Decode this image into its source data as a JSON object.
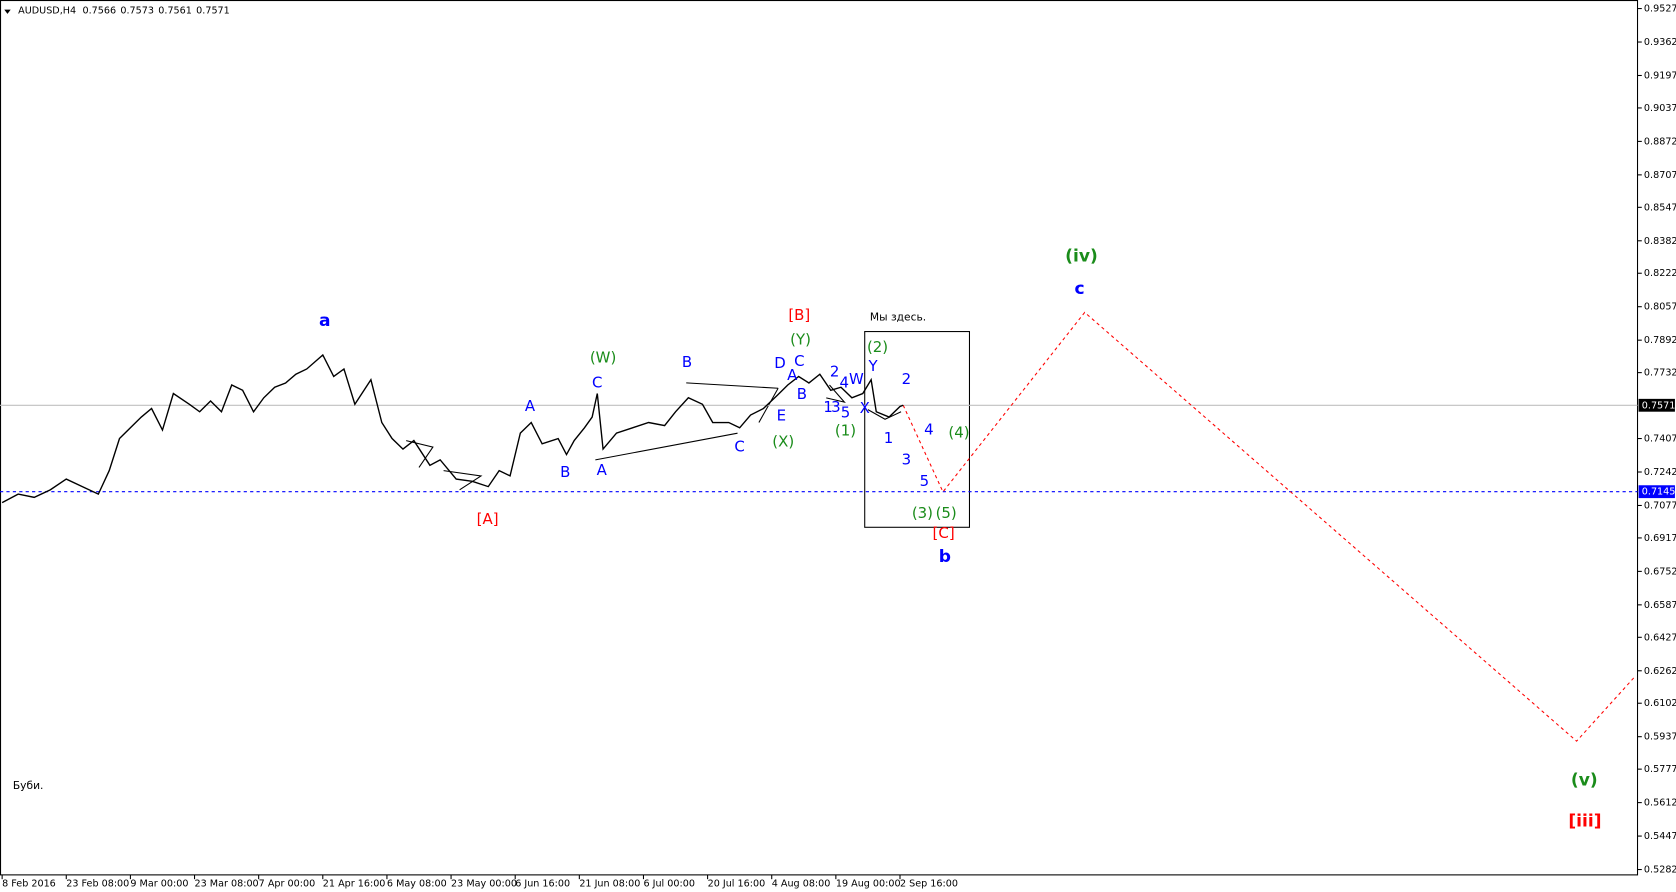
{
  "chart_data": {
    "type": "line",
    "symbol": "AUDUSD,H4",
    "quote": [
      0.7566,
      0.7573,
      0.7561,
      0.7571
    ],
    "color": "#000000",
    "x": [
      0,
      0.25,
      0.5,
      0.75,
      1,
      1.25,
      1.5,
      1.67,
      1.83,
      2,
      2.17,
      2.33,
      2.5,
      2.67,
      2.92,
      3.08,
      3.25,
      3.42,
      3.58,
      3.75,
      3.92,
      4.08,
      4.25,
      4.42,
      4.58,
      4.75,
      5,
      5.17,
      5.33,
      5.5,
      5.75,
      5.92,
      6.08,
      6.25,
      6.42,
      6.67,
      6.83,
      7.08,
      7.33,
      7.58,
      7.75,
      7.92,
      8.08,
      8.25,
      8.42,
      8.67,
      8.8,
      8.92,
      9.08,
      9.2,
      9.28,
      9.37,
      9.58,
      9.83,
      10.08,
      10.33,
      10.5,
      10.7,
      10.92,
      11.08,
      11.33,
      11.5,
      11.67,
      11.87,
      12.08,
      12.25,
      12.42,
      12.58,
      12.75,
      12.92,
      13.08,
      13.25,
      13.42,
      13.55,
      13.63,
      13.83,
      14,
      14.05
    ],
    "values": [
      0.7091,
      0.7133,
      0.7117,
      0.7154,
      0.7207,
      0.717,
      0.7133,
      0.7249,
      0.7407,
      0.746,
      0.7513,
      0.7555,
      0.7449,
      0.7629,
      0.7576,
      0.7539,
      0.7592,
      0.7539,
      0.7671,
      0.7645,
      0.7539,
      0.7608,
      0.766,
      0.7681,
      0.7724,
      0.775,
      0.7819,
      0.7713,
      0.775,
      0.7576,
      0.7697,
      0.7486,
      0.7407,
      0.7355,
      0.7397,
      0.7275,
      0.7302,
      0.7207,
      0.7196,
      0.717,
      0.7249,
      0.7223,
      0.7434,
      0.7486,
      0.7381,
      0.7407,
      0.7328,
      0.7397,
      0.746,
      0.7513,
      0.7629,
      0.7355,
      0.7434,
      0.746,
      0.7486,
      0.7471,
      0.7539,
      0.7608,
      0.7576,
      0.7486,
      0.7486,
      0.746,
      0.7523,
      0.7555,
      0.7618,
      0.7671,
      0.7713,
      0.7681,
      0.7724,
      0.7645,
      0.766,
      0.7608,
      0.7629,
      0.7697,
      0.7539,
      0.7513,
      0.7565,
      0.7571
    ],
    "projection": {
      "color": "#ff0000",
      "x": [
        14.05,
        14.67,
        16.88,
        24.55,
        25.47
      ],
      "values": [
        0.7571,
        0.7144,
        0.8029,
        0.5915,
        0.6237
      ]
    },
    "xlim": [
      0,
      25.5
    ],
    "ylim": [
      0.5282,
      0.9527
    ],
    "xticks": [
      {
        "value": 0,
        "label": "8 Feb 2016"
      },
      {
        "value": 1,
        "label": "23 Feb 08:00"
      },
      {
        "value": 2,
        "label": "9 Mar 00:00"
      },
      {
        "value": 3,
        "label": "23 Mar 08:00"
      },
      {
        "value": 4,
        "label": "7 Apr 00:00"
      },
      {
        "value": 5,
        "label": "21 Apr 16:00"
      },
      {
        "value": 6,
        "label": "6 May 08:00"
      },
      {
        "value": 7,
        "label": "23 May 00:00"
      },
      {
        "value": 8,
        "label": "6 Jun 16:00"
      },
      {
        "value": 9,
        "label": "21 Jun 08:00"
      },
      {
        "value": 10,
        "label": "6 Jul 00:00"
      },
      {
        "value": 11,
        "label": "20 Jul 16:00"
      },
      {
        "value": 12,
        "label": "4 Aug 08:00"
      },
      {
        "value": 13,
        "label": "19 Aug 00:00"
      },
      {
        "value": 14,
        "label": "2 Sep 16:00"
      }
    ],
    "yticks": [
      0.9527,
      0.9362,
      0.9197,
      0.9037,
      0.8872,
      0.8707,
      0.8547,
      0.8382,
      0.8222,
      0.8057,
      0.7892,
      0.7732,
      0.7407,
      0.7242,
      0.7077,
      0.6917,
      0.6752,
      0.6587,
      0.6427,
      0.6262,
      0.6102,
      0.5937,
      0.5777,
      0.5612,
      0.5447,
      0.5282
    ],
    "current_price": 0.7571,
    "level": 0.7145,
    "level_color": "#0000ff",
    "annotations": [
      {
        "text": "a",
        "color": "#0000ff",
        "bold": true,
        "x": 5.03,
        "y": 0.7987
      },
      {
        "text": "[A]",
        "color": "#ff0000",
        "bold": false,
        "x": 7.57,
        "y": 0.7007
      },
      {
        "text": "A",
        "color": "#0000ff",
        "bold": false,
        "x": 8.23,
        "y": 0.7565
      },
      {
        "text": "B",
        "color": "#0000ff",
        "bold": false,
        "x": 8.78,
        "y": 0.7239
      },
      {
        "text": "(W)",
        "color": "#1a8c1a",
        "bold": false,
        "x": 9.37,
        "y": 0.7803
      },
      {
        "text": "C",
        "color": "#0000ff",
        "bold": false,
        "x": 9.28,
        "y": 0.7681
      },
      {
        "text": "A",
        "color": "#0000ff",
        "bold": false,
        "x": 9.35,
        "y": 0.7249
      },
      {
        "text": "B",
        "color": "#0000ff",
        "bold": false,
        "x": 10.68,
        "y": 0.7782
      },
      {
        "text": "C",
        "color": "#0000ff",
        "bold": false,
        "x": 11.5,
        "y": 0.7365
      },
      {
        "text": "D",
        "color": "#0000ff",
        "bold": false,
        "x": 12.13,
        "y": 0.7776
      },
      {
        "text": "A",
        "color": "#0000ff",
        "bold": false,
        "x": 12.32,
        "y": 0.7718
      },
      {
        "text": "C",
        "color": "#0000ff",
        "bold": false,
        "x": 12.43,
        "y": 0.7787
      },
      {
        "text": "B",
        "color": "#0000ff",
        "bold": false,
        "x": 12.47,
        "y": 0.7623
      },
      {
        "text": "E",
        "color": "#0000ff",
        "bold": false,
        "x": 12.15,
        "y": 0.7518
      },
      {
        "text": "(X)",
        "color": "#1a8c1a",
        "bold": false,
        "x": 12.18,
        "y": 0.7391
      },
      {
        "text": "[B]",
        "color": "#ff0000",
        "bold": false,
        "x": 12.43,
        "y": 0.8014
      },
      {
        "text": "(Y)",
        "color": "#1a8c1a",
        "bold": false,
        "x": 12.45,
        "y": 0.7892
      },
      {
        "text": "2",
        "color": "#0000ff",
        "bold": false,
        "x": 12.98,
        "y": 0.7734
      },
      {
        "text": "4",
        "color": "#0000ff",
        "bold": false,
        "x": 13.13,
        "y": 0.7681
      },
      {
        "text": "W",
        "color": "#0000ff",
        "bold": false,
        "x": 13.32,
        "y": 0.7697
      },
      {
        "text": "1",
        "color": "#0000ff",
        "bold": false,
        "x": 12.88,
        "y": 0.756
      },
      {
        "text": "3",
        "color": "#0000ff",
        "bold": false,
        "x": 13.0,
        "y": 0.756
      },
      {
        "text": "5",
        "color": "#0000ff",
        "bold": false,
        "x": 13.15,
        "y": 0.7534
      },
      {
        "text": "(1)",
        "color": "#1a8c1a",
        "bold": false,
        "x": 13.15,
        "y": 0.7444
      },
      {
        "text": "X",
        "color": "#0000ff",
        "bold": false,
        "x": 13.45,
        "y": 0.7555
      },
      {
        "text": "Y",
        "color": "#0000ff",
        "bold": false,
        "x": 13.58,
        "y": 0.7761
      },
      {
        "text": "(2)",
        "color": "#1a8c1a",
        "bold": false,
        "x": 13.65,
        "y": 0.7855
      },
      {
        "text": "Мы здесь.",
        "color": "#000000",
        "bold": false,
        "x": 13.97,
        "y": 0.8003
      },
      {
        "text": "2",
        "color": "#0000ff",
        "bold": false,
        "x": 14.1,
        "y": 0.7697
      },
      {
        "text": "1",
        "color": "#0000ff",
        "bold": false,
        "x": 13.82,
        "y": 0.7407
      },
      {
        "text": "4",
        "color": "#0000ff",
        "bold": false,
        "x": 14.45,
        "y": 0.7449
      },
      {
        "text": "(4)",
        "color": "#1a8c1a",
        "bold": false,
        "x": 14.92,
        "y": 0.7434
      },
      {
        "text": "3",
        "color": "#0000ff",
        "bold": false,
        "x": 14.1,
        "y": 0.7302
      },
      {
        "text": "5",
        "color": "#0000ff",
        "bold": false,
        "x": 14.38,
        "y": 0.7196
      },
      {
        "text": "(3)",
        "color": "#1a8c1a",
        "bold": false,
        "x": 14.35,
        "y": 0.7038
      },
      {
        "text": "(5)",
        "color": "#1a8c1a",
        "bold": false,
        "x": 14.72,
        "y": 0.7038
      },
      {
        "text": "[C]",
        "color": "#ff0000",
        "bold": false,
        "x": 14.68,
        "y": 0.6938
      },
      {
        "text": "b",
        "color": "#0000ff",
        "bold": true,
        "x": 14.7,
        "y": 0.6822
      },
      {
        "text": "(iv)",
        "color": "#1a8c1a",
        "bold": true,
        "x": 16.83,
        "y": 0.8304
      },
      {
        "text": "c",
        "color": "#0000ff",
        "bold": true,
        "x": 16.8,
        "y": 0.8145
      },
      {
        "text": "(v)",
        "color": "#1a8c1a",
        "bold": true,
        "x": 24.67,
        "y": 0.572
      },
      {
        "text": "[iii]",
        "color": "#ff0000",
        "bold": true,
        "x": 24.68,
        "y": 0.552
      }
    ],
    "caption": "Буби."
  }
}
